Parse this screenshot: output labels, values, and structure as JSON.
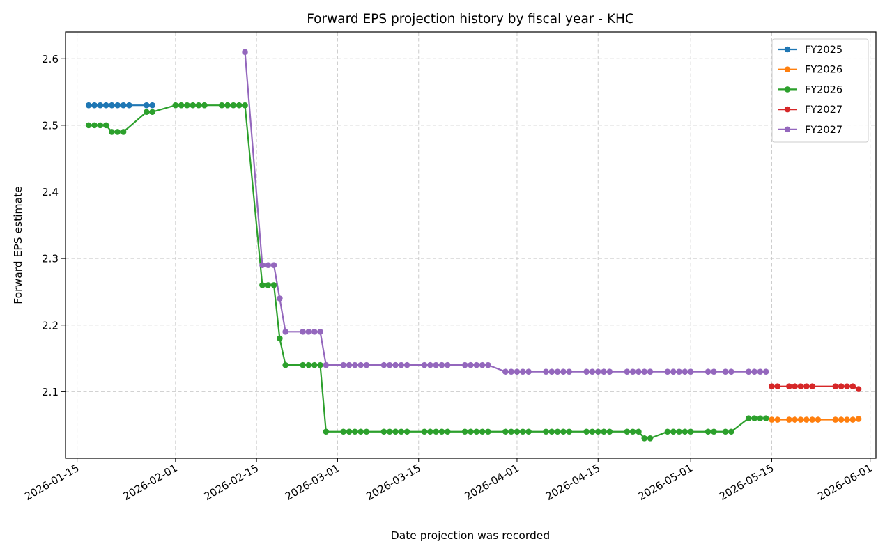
{
  "chart_data": {
    "type": "line",
    "title": "Forward EPS projection history by fiscal year - KHC",
    "xlabel": "Date projection was recorded",
    "ylabel": "Forward EPS estimate",
    "xlim": [
      "2026-01-13",
      "2026-06-02"
    ],
    "ylim": [
      2.0,
      2.64
    ],
    "x_ticks": [
      "2026-01-15",
      "2026-02-01",
      "2026-02-15",
      "2026-03-01",
      "2026-03-15",
      "2026-04-01",
      "2026-04-15",
      "2026-05-01",
      "2026-05-15",
      "2026-06-01"
    ],
    "y_ticks": [
      2.1,
      2.2,
      2.3,
      2.4,
      2.5,
      2.6
    ],
    "y_tick_labels": [
      "2.1",
      "2.2",
      "2.3",
      "2.4",
      "2.5",
      "2.6"
    ],
    "grid": true,
    "legend_position": "top-right",
    "series": [
      {
        "name": "FY2025",
        "color": "#1f77b4",
        "points": [
          [
            "2026-01-17",
            2.53
          ],
          [
            "2026-01-18",
            2.53
          ],
          [
            "2026-01-19",
            2.53
          ],
          [
            "2026-01-20",
            2.53
          ],
          [
            "2026-01-21",
            2.53
          ],
          [
            "2026-01-22",
            2.53
          ],
          [
            "2026-01-23",
            2.53
          ],
          [
            "2026-01-24",
            2.53
          ],
          [
            "2026-01-27",
            2.53
          ],
          [
            "2026-01-28",
            2.53
          ]
        ]
      },
      {
        "name": "FY2026",
        "color": "#ff7f0e",
        "points": [
          [
            "2026-05-15",
            2.058
          ],
          [
            "2026-05-16",
            2.058
          ],
          [
            "2026-05-18",
            2.058
          ],
          [
            "2026-05-19",
            2.058
          ],
          [
            "2026-05-20",
            2.058
          ],
          [
            "2026-05-21",
            2.058
          ],
          [
            "2026-05-22",
            2.058
          ],
          [
            "2026-05-23",
            2.058
          ],
          [
            "2026-05-26",
            2.058
          ],
          [
            "2026-05-27",
            2.058
          ],
          [
            "2026-05-28",
            2.058
          ],
          [
            "2026-05-29",
            2.058
          ],
          [
            "2026-05-30",
            2.059
          ]
        ]
      },
      {
        "name": "FY2026",
        "color": "#2ca02c",
        "points": [
          [
            "2026-01-17",
            2.5
          ],
          [
            "2026-01-18",
            2.5
          ],
          [
            "2026-01-19",
            2.5
          ],
          [
            "2026-01-20",
            2.5
          ],
          [
            "2026-01-21",
            2.49
          ],
          [
            "2026-01-22",
            2.49
          ],
          [
            "2026-01-23",
            2.49
          ],
          [
            "2026-01-27",
            2.52
          ],
          [
            "2026-01-28",
            2.52
          ],
          [
            "2026-02-01",
            2.53
          ],
          [
            "2026-02-02",
            2.53
          ],
          [
            "2026-02-03",
            2.53
          ],
          [
            "2026-02-04",
            2.53
          ],
          [
            "2026-02-05",
            2.53
          ],
          [
            "2026-02-06",
            2.53
          ],
          [
            "2026-02-09",
            2.53
          ],
          [
            "2026-02-10",
            2.53
          ],
          [
            "2026-02-11",
            2.53
          ],
          [
            "2026-02-12",
            2.53
          ],
          [
            "2026-02-13",
            2.53
          ],
          [
            "2026-02-16",
            2.26
          ],
          [
            "2026-02-17",
            2.26
          ],
          [
            "2026-02-18",
            2.26
          ],
          [
            "2026-02-19",
            2.18
          ],
          [
            "2026-02-20",
            2.14
          ],
          [
            "2026-02-23",
            2.14
          ],
          [
            "2026-02-24",
            2.14
          ],
          [
            "2026-02-25",
            2.14
          ],
          [
            "2026-02-26",
            2.14
          ],
          [
            "2026-02-27",
            2.04
          ],
          [
            "2026-03-02",
            2.04
          ],
          [
            "2026-03-03",
            2.04
          ],
          [
            "2026-03-04",
            2.04
          ],
          [
            "2026-03-05",
            2.04
          ],
          [
            "2026-03-06",
            2.04
          ],
          [
            "2026-03-09",
            2.04
          ],
          [
            "2026-03-10",
            2.04
          ],
          [
            "2026-03-11",
            2.04
          ],
          [
            "2026-03-12",
            2.04
          ],
          [
            "2026-03-13",
            2.04
          ],
          [
            "2026-03-16",
            2.04
          ],
          [
            "2026-03-17",
            2.04
          ],
          [
            "2026-03-18",
            2.04
          ],
          [
            "2026-03-19",
            2.04
          ],
          [
            "2026-03-20",
            2.04
          ],
          [
            "2026-03-23",
            2.04
          ],
          [
            "2026-03-24",
            2.04
          ],
          [
            "2026-03-25",
            2.04
          ],
          [
            "2026-03-26",
            2.04
          ],
          [
            "2026-03-27",
            2.04
          ],
          [
            "2026-03-30",
            2.04
          ],
          [
            "2026-03-31",
            2.04
          ],
          [
            "2026-04-01",
            2.04
          ],
          [
            "2026-04-02",
            2.04
          ],
          [
            "2026-04-03",
            2.04
          ],
          [
            "2026-04-06",
            2.04
          ],
          [
            "2026-04-07",
            2.04
          ],
          [
            "2026-04-08",
            2.04
          ],
          [
            "2026-04-09",
            2.04
          ],
          [
            "2026-04-10",
            2.04
          ],
          [
            "2026-04-13",
            2.04
          ],
          [
            "2026-04-14",
            2.04
          ],
          [
            "2026-04-15",
            2.04
          ],
          [
            "2026-04-16",
            2.04
          ],
          [
            "2026-04-17",
            2.04
          ],
          [
            "2026-04-20",
            2.04
          ],
          [
            "2026-04-21",
            2.04
          ],
          [
            "2026-04-22",
            2.04
          ],
          [
            "2026-04-23",
            2.03
          ],
          [
            "2026-04-24",
            2.03
          ],
          [
            "2026-04-27",
            2.04
          ],
          [
            "2026-04-28",
            2.04
          ],
          [
            "2026-04-29",
            2.04
          ],
          [
            "2026-04-30",
            2.04
          ],
          [
            "2026-05-01",
            2.04
          ],
          [
            "2026-05-04",
            2.04
          ],
          [
            "2026-05-05",
            2.04
          ],
          [
            "2026-05-07",
            2.04
          ],
          [
            "2026-05-08",
            2.04
          ],
          [
            "2026-05-11",
            2.06
          ],
          [
            "2026-05-12",
            2.06
          ],
          [
            "2026-05-13",
            2.06
          ],
          [
            "2026-05-14",
            2.06
          ]
        ]
      },
      {
        "name": "FY2027",
        "color": "#d62728",
        "points": [
          [
            "2026-05-15",
            2.108
          ],
          [
            "2026-05-16",
            2.108
          ],
          [
            "2026-05-18",
            2.108
          ],
          [
            "2026-05-19",
            2.108
          ],
          [
            "2026-05-20",
            2.108
          ],
          [
            "2026-05-21",
            2.108
          ],
          [
            "2026-05-22",
            2.108
          ],
          [
            "2026-05-26",
            2.108
          ],
          [
            "2026-05-27",
            2.108
          ],
          [
            "2026-05-28",
            2.108
          ],
          [
            "2026-05-29",
            2.108
          ],
          [
            "2026-05-30",
            2.104
          ]
        ]
      },
      {
        "name": "FY2027",
        "color": "#9467bd",
        "points": [
          [
            "2026-02-13",
            2.61
          ],
          [
            "2026-02-16",
            2.29
          ],
          [
            "2026-02-17",
            2.29
          ],
          [
            "2026-02-18",
            2.29
          ],
          [
            "2026-02-19",
            2.24
          ],
          [
            "2026-02-20",
            2.19
          ],
          [
            "2026-02-23",
            2.19
          ],
          [
            "2026-02-24",
            2.19
          ],
          [
            "2026-02-25",
            2.19
          ],
          [
            "2026-02-26",
            2.19
          ],
          [
            "2026-02-27",
            2.14
          ],
          [
            "2026-03-02",
            2.14
          ],
          [
            "2026-03-03",
            2.14
          ],
          [
            "2026-03-04",
            2.14
          ],
          [
            "2026-03-05",
            2.14
          ],
          [
            "2026-03-06",
            2.14
          ],
          [
            "2026-03-09",
            2.14
          ],
          [
            "2026-03-10",
            2.14
          ],
          [
            "2026-03-11",
            2.14
          ],
          [
            "2026-03-12",
            2.14
          ],
          [
            "2026-03-13",
            2.14
          ],
          [
            "2026-03-16",
            2.14
          ],
          [
            "2026-03-17",
            2.14
          ],
          [
            "2026-03-18",
            2.14
          ],
          [
            "2026-03-19",
            2.14
          ],
          [
            "2026-03-20",
            2.14
          ],
          [
            "2026-03-23",
            2.14
          ],
          [
            "2026-03-24",
            2.14
          ],
          [
            "2026-03-25",
            2.14
          ],
          [
            "2026-03-26",
            2.14
          ],
          [
            "2026-03-27",
            2.14
          ],
          [
            "2026-03-30",
            2.13
          ],
          [
            "2026-03-31",
            2.13
          ],
          [
            "2026-04-01",
            2.13
          ],
          [
            "2026-04-02",
            2.13
          ],
          [
            "2026-04-03",
            2.13
          ],
          [
            "2026-04-06",
            2.13
          ],
          [
            "2026-04-07",
            2.13
          ],
          [
            "2026-04-08",
            2.13
          ],
          [
            "2026-04-09",
            2.13
          ],
          [
            "2026-04-10",
            2.13
          ],
          [
            "2026-04-13",
            2.13
          ],
          [
            "2026-04-14",
            2.13
          ],
          [
            "2026-04-15",
            2.13
          ],
          [
            "2026-04-16",
            2.13
          ],
          [
            "2026-04-17",
            2.13
          ],
          [
            "2026-04-20",
            2.13
          ],
          [
            "2026-04-21",
            2.13
          ],
          [
            "2026-04-22",
            2.13
          ],
          [
            "2026-04-23",
            2.13
          ],
          [
            "2026-04-24",
            2.13
          ],
          [
            "2026-04-27",
            2.13
          ],
          [
            "2026-04-28",
            2.13
          ],
          [
            "2026-04-29",
            2.13
          ],
          [
            "2026-04-30",
            2.13
          ],
          [
            "2026-05-01",
            2.13
          ],
          [
            "2026-05-04",
            2.13
          ],
          [
            "2026-05-05",
            2.13
          ],
          [
            "2026-05-07",
            2.13
          ],
          [
            "2026-05-08",
            2.13
          ],
          [
            "2026-05-11",
            2.13
          ],
          [
            "2026-05-12",
            2.13
          ],
          [
            "2026-05-13",
            2.13
          ],
          [
            "2026-05-14",
            2.13
          ]
        ]
      }
    ]
  }
}
